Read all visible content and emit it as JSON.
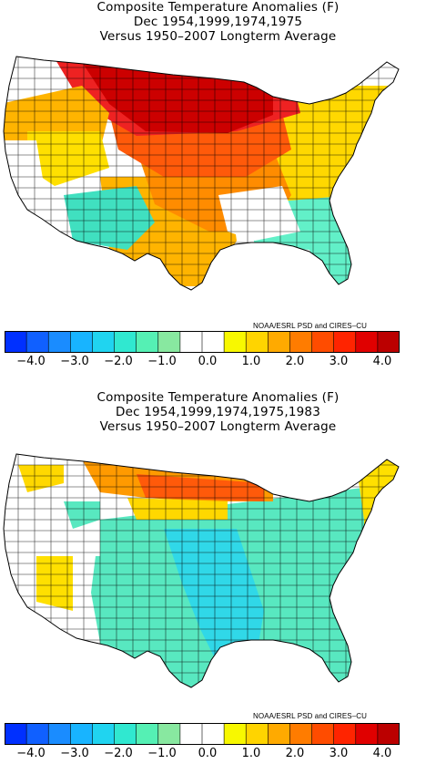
{
  "panels": [
    {
      "title_lines": [
        "Composite Temperature Anomalies (F)",
        "Dec  1954,1999,1974,1975",
        "Versus 1950–2007 Longterm Average"
      ],
      "credit": "NOAA/ESRL PSD and CIRES–CU",
      "regions": {
        "northern_plains": "#cc0000",
        "upper_midwest": "#ee2222",
        "central_plains": "#ff5a0a",
        "midwest_south": "#ff8c00",
        "texas_oklahoma": "#ffb400",
        "great_lakes_northeast": "#ffd800",
        "gulf_coast_florida": "#62f0c8",
        "southwest": "#40e0c0",
        "west": "#ffffff"
      }
    },
    {
      "title_lines": [
        "Composite Temperature Anomalies (F)",
        "Dec  1954,1999,1974,1975,1983",
        "Versus 1950–2007 Longterm Average"
      ],
      "credit": "NOAA/ESRL PSD and CIRES–CU",
      "regions": {
        "central_us": "#58e8c0",
        "mississippi_valley": "#30d8e8",
        "northern_plains": "#ff9a00",
        "north_dakota_core": "#ff5a0a",
        "northwest_coast": "#ffd800",
        "northeast": "#ffe000",
        "west": "#ffffff"
      }
    }
  ],
  "colorbar": {
    "colors": [
      "#0030ff",
      "#1060ff",
      "#1a8cff",
      "#18b4ff",
      "#20d4f0",
      "#30e8d0",
      "#55f0b4",
      "#88e8a0",
      "#ffffff",
      "#ffffff",
      "#f8f800",
      "#ffd400",
      "#ffaa00",
      "#ff7c00",
      "#ff4c00",
      "#ff2400",
      "#e00000",
      "#bb0000"
    ],
    "tick_labels": [
      "−4.0",
      "−3.0",
      "−2.0",
      "−1.0",
      "0.0",
      "1.0",
      "2.0",
      "3.0",
      "4.0"
    ]
  }
}
